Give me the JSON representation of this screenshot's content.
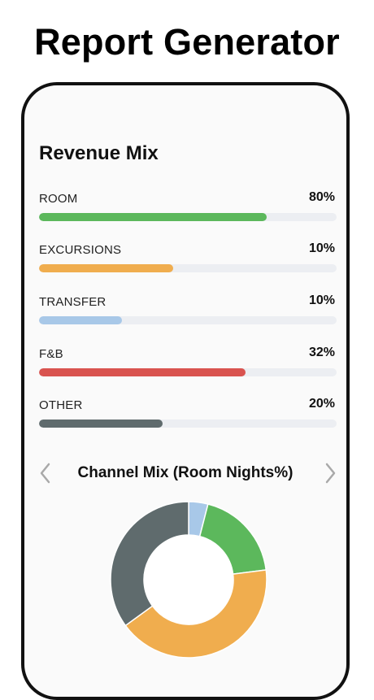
{
  "promo": {
    "title": "Report Generator"
  },
  "revenue": {
    "title": "Revenue Mix",
    "items": [
      {
        "label": "ROOM",
        "pct_text": "80%",
        "bar_fill": 0.765,
        "color": "#5cb85c"
      },
      {
        "label": "EXCURSIONS",
        "pct_text": "10%",
        "bar_fill": 0.45,
        "color": "#f0ad4e"
      },
      {
        "label": "TRANSFER",
        "pct_text": "10%",
        "bar_fill": 0.28,
        "color": "#a8c8e8"
      },
      {
        "label": "F&B",
        "pct_text": "32%",
        "bar_fill": 0.695,
        "color": "#d9534f"
      },
      {
        "label": "OTHER",
        "pct_text": "20%",
        "bar_fill": 0.415,
        "color": "#5f6b6d"
      }
    ]
  },
  "channel": {
    "title": "Channel Mix (Room Nights%)",
    "prev_icon": "chevron-left-icon",
    "next_icon": "chevron-right-icon"
  },
  "chart_data": {
    "type": "pie",
    "donut": true,
    "title": "Channel Mix (Room Nights%)",
    "slices": [
      {
        "value": 4,
        "color": "#a8c8e8"
      },
      {
        "value": 19,
        "color": "#5cb85c"
      },
      {
        "value": 42,
        "color": "#f0ad4e"
      },
      {
        "value": 35,
        "color": "#5f6b6d"
      }
    ]
  }
}
